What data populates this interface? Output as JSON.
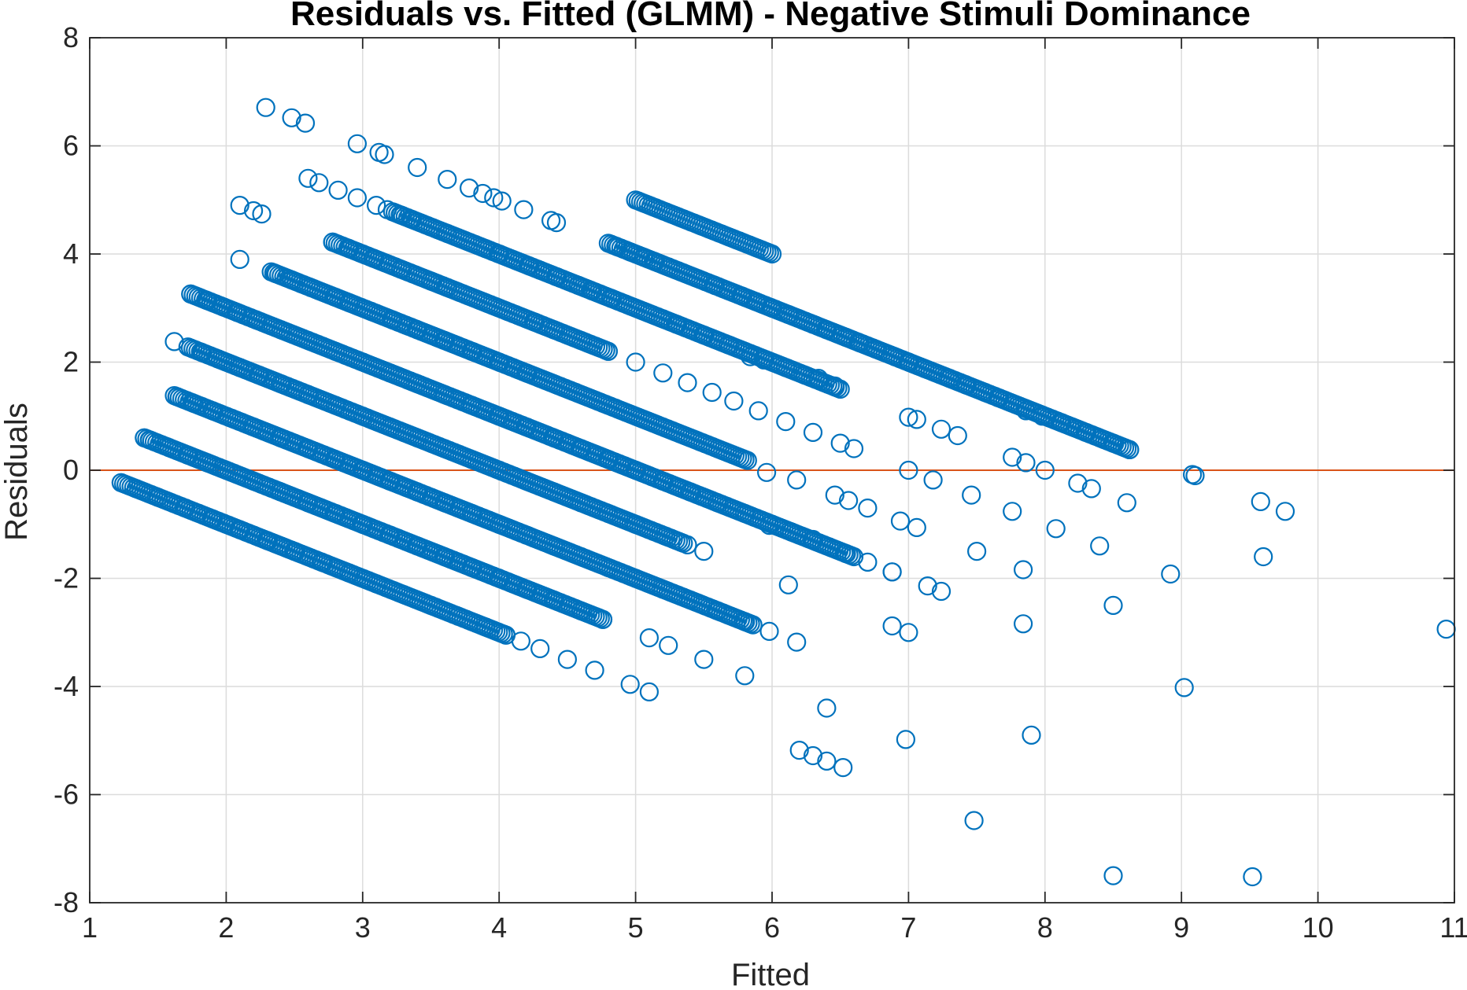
{
  "chart_data": {
    "type": "scatter",
    "title": "Residuals vs. Fitted (GLMM) - Negative Stimuli Dominance",
    "xlabel": "Fitted",
    "ylabel": "Residuals",
    "xlim": [
      1,
      11
    ],
    "ylim": [
      -8,
      8
    ],
    "xticks": [
      1,
      2,
      3,
      4,
      5,
      6,
      7,
      8,
      9,
      10,
      11
    ],
    "yticks": [
      -8,
      -6,
      -4,
      -2,
      0,
      2,
      4,
      6,
      8
    ],
    "grid": true,
    "reference_line": {
      "y": 0,
      "color": "#d95319"
    },
    "marker": "circle-open",
    "series_color": "#0072bd",
    "bands": [
      {
        "observed": 1,
        "fitted_range": [
          1.23,
          4.05
        ]
      },
      {
        "observed": 2,
        "fitted_range": [
          1.4,
          4.76
        ]
      },
      {
        "observed": 3,
        "fitted_range": [
          1.62,
          5.86
        ]
      },
      {
        "observed": 4,
        "fitted_range": [
          1.72,
          5.35
        ]
      },
      {
        "observed": 5,
        "fitted_range": [
          1.74,
          6.6
        ]
      },
      {
        "observed": 6,
        "fitted_range": [
          2.33,
          5.82
        ]
      },
      {
        "observed": 7,
        "fitted_range": [
          2.78,
          4.8
        ]
      },
      {
        "observed": 8,
        "fitted_range": [
          3.22,
          6.5
        ]
      },
      {
        "observed": 9,
        "fitted_range": [
          4.8,
          8.62
        ]
      },
      {
        "observed": 10,
        "fitted_range": [
          5.0,
          6.0
        ]
      }
    ],
    "points": [
      [
        2.29,
        6.71
      ],
      [
        2.48,
        6.52
      ],
      [
        2.58,
        6.42
      ],
      [
        2.96,
        6.04
      ],
      [
        3.12,
        5.88
      ],
      [
        3.16,
        5.84
      ],
      [
        3.4,
        5.6
      ],
      [
        2.6,
        5.4
      ],
      [
        2.68,
        5.32
      ],
      [
        2.82,
        5.18
      ],
      [
        2.96,
        5.04
      ],
      [
        3.1,
        4.9
      ],
      [
        3.18,
        4.82
      ],
      [
        3.28,
        4.72
      ],
      [
        3.36,
        4.64
      ],
      [
        3.62,
        5.38
      ],
      [
        3.78,
        5.22
      ],
      [
        3.88,
        5.12
      ],
      [
        3.96,
        5.04
      ],
      [
        4.02,
        4.98
      ],
      [
        4.18,
        4.82
      ],
      [
        4.38,
        4.62
      ],
      [
        4.42,
        4.58
      ],
      [
        2.1,
        4.9
      ],
      [
        2.2,
        4.8
      ],
      [
        2.26,
        4.74
      ],
      [
        2.1,
        3.9
      ],
      [
        3.62,
        4.38
      ],
      [
        2.78,
        4.22
      ],
      [
        2.9,
        4.1
      ],
      [
        3.0,
        4.0
      ],
      [
        3.08,
        3.92
      ],
      [
        3.28,
        3.72
      ],
      [
        3.5,
        3.5
      ],
      [
        3.62,
        3.38
      ],
      [
        3.9,
        4.1
      ],
      [
        4.0,
        4.0
      ],
      [
        4.22,
        3.78
      ],
      [
        4.3,
        3.7
      ],
      [
        4.42,
        3.58
      ],
      [
        4.58,
        3.42
      ],
      [
        4.68,
        3.32
      ],
      [
        4.82,
        3.18
      ],
      [
        4.86,
        4.14
      ],
      [
        4.96,
        4.04
      ],
      [
        5.06,
        3.94
      ],
      [
        5.14,
        3.86
      ],
      [
        5.24,
        3.76
      ],
      [
        5.58,
        3.42
      ],
      [
        2.36,
        3.64
      ],
      [
        2.48,
        3.52
      ],
      [
        2.62,
        3.38
      ],
      [
        2.8,
        3.2
      ],
      [
        2.9,
        3.1
      ],
      [
        3.06,
        2.94
      ],
      [
        3.22,
        2.78
      ],
      [
        3.4,
        2.6
      ],
      [
        3.6,
        2.4
      ],
      [
        3.8,
        2.2
      ],
      [
        4.0,
        2.0
      ],
      [
        4.2,
        1.8
      ],
      [
        4.26,
        2.74
      ],
      [
        4.4,
        2.6
      ],
      [
        4.6,
        2.4
      ],
      [
        4.8,
        2.2
      ],
      [
        5.0,
        2.0
      ],
      [
        5.2,
        1.8
      ],
      [
        5.38,
        1.62
      ],
      [
        5.56,
        1.44
      ],
      [
        5.72,
        1.28
      ],
      [
        5.9,
        1.1
      ],
      [
        6.1,
        0.9
      ],
      [
        6.3,
        0.7
      ],
      [
        6.5,
        0.5
      ],
      [
        6.6,
        0.4
      ],
      [
        5.2,
        2.8
      ],
      [
        5.3,
        2.7
      ],
      [
        5.5,
        2.5
      ],
      [
        5.68,
        2.32
      ],
      [
        5.78,
        3.22
      ],
      [
        5.88,
        3.12
      ],
      [
        6.0,
        3.0
      ],
      [
        6.12,
        2.88
      ],
      [
        6.3,
        2.7
      ],
      [
        6.4,
        2.6
      ],
      [
        6.54,
        2.46
      ],
      [
        6.64,
        2.36
      ],
      [
        6.76,
        2.24
      ],
      [
        6.9,
        2.1
      ],
      [
        7.0,
        2.0
      ],
      [
        7.12,
        1.88
      ],
      [
        7.3,
        1.7
      ],
      [
        7.42,
        1.58
      ],
      [
        7.56,
        1.44
      ],
      [
        7.66,
        1.34
      ],
      [
        5.84,
        2.1
      ],
      [
        5.94,
        2.04
      ],
      [
        6.1,
        1.9
      ],
      [
        6.24,
        1.76
      ],
      [
        6.34,
        1.7
      ],
      [
        6.46,
        1.56
      ],
      [
        7.86,
        1.1
      ],
      [
        7.98,
        1.0
      ],
      [
        8.12,
        0.88
      ],
      [
        8.2,
        0.8
      ],
      [
        8.3,
        0.7
      ],
      [
        8.5,
        0.5
      ],
      [
        8.62,
        0.38
      ],
      [
        7.0,
        0.98
      ],
      [
        7.06,
        0.94
      ],
      [
        7.24,
        0.76
      ],
      [
        7.36,
        0.64
      ],
      [
        1.74,
        3.26
      ],
      [
        1.86,
        3.14
      ],
      [
        1.98,
        3.02
      ],
      [
        2.08,
        2.92
      ],
      [
        2.22,
        2.78
      ],
      [
        2.4,
        2.6
      ],
      [
        2.6,
        2.4
      ],
      [
        2.8,
        2.2
      ],
      [
        3.0,
        2.0
      ],
      [
        3.2,
        1.8
      ],
      [
        3.4,
        1.6
      ],
      [
        3.6,
        1.4
      ],
      [
        3.8,
        1.2
      ],
      [
        4.0,
        1.0
      ],
      [
        4.2,
        0.8
      ],
      [
        4.4,
        0.6
      ],
      [
        4.6,
        0.4
      ],
      [
        4.8,
        0.2
      ],
      [
        5.0,
        0.0
      ],
      [
        5.2,
        -0.2
      ],
      [
        5.4,
        -0.4
      ],
      [
        5.6,
        -0.6
      ],
      [
        5.8,
        -0.8
      ],
      [
        1.62,
        2.38
      ],
      [
        1.82,
        2.18
      ],
      [
        1.94,
        2.06
      ],
      [
        2.1,
        1.9
      ],
      [
        2.24,
        1.76
      ],
      [
        2.4,
        1.6
      ],
      [
        2.6,
        1.4
      ],
      [
        2.8,
        1.2
      ],
      [
        3.0,
        1.0
      ],
      [
        3.2,
        0.8
      ],
      [
        3.4,
        0.6
      ],
      [
        3.6,
        0.4
      ],
      [
        3.8,
        0.2
      ],
      [
        4.0,
        0.0
      ],
      [
        4.2,
        -0.2
      ],
      [
        4.4,
        -0.4
      ],
      [
        4.6,
        -0.6
      ],
      [
        4.8,
        -0.8
      ],
      [
        5.0,
        -1.0
      ],
      [
        5.22,
        -1.22
      ],
      [
        5.38,
        -1.38
      ],
      [
        5.5,
        -1.5
      ],
      [
        5.96,
        -0.04
      ],
      [
        6.18,
        -0.18
      ],
      [
        6.46,
        -0.46
      ],
      [
        6.56,
        -0.56
      ],
      [
        6.7,
        -0.7
      ],
      [
        5.98,
        -1.02
      ],
      [
        6.14,
        -1.14
      ],
      [
        6.3,
        -1.28
      ],
      [
        6.54,
        -1.54
      ],
      [
        6.7,
        -1.7
      ],
      [
        6.88,
        -1.88
      ],
      [
        1.64,
        1.36
      ],
      [
        1.76,
        1.24
      ],
      [
        1.9,
        1.1
      ],
      [
        2.04,
        0.96
      ],
      [
        2.2,
        0.8
      ],
      [
        2.4,
        0.6
      ],
      [
        2.6,
        0.4
      ],
      [
        2.8,
        0.2
      ],
      [
        3.0,
        0.0
      ],
      [
        3.2,
        -0.2
      ],
      [
        3.4,
        -0.4
      ],
      [
        3.6,
        -0.6
      ],
      [
        3.8,
        -0.8
      ],
      [
        4.0,
        -1.0
      ],
      [
        4.2,
        -1.2
      ],
      [
        4.4,
        -1.4
      ],
      [
        4.6,
        -1.6
      ],
      [
        4.8,
        -1.8
      ],
      [
        5.0,
        -2.0
      ],
      [
        5.2,
        -2.2
      ],
      [
        5.4,
        -2.4
      ],
      [
        5.6,
        -2.6
      ],
      [
        5.8,
        -2.8
      ],
      [
        1.58,
        0.42
      ],
      [
        1.72,
        0.28
      ],
      [
        1.86,
        0.14
      ],
      [
        2.0,
        0.0
      ],
      [
        2.2,
        -0.2
      ],
      [
        2.4,
        -0.4
      ],
      [
        2.6,
        -0.6
      ],
      [
        2.8,
        -0.8
      ],
      [
        3.0,
        -1.0
      ],
      [
        3.2,
        -1.2
      ],
      [
        3.4,
        -1.4
      ],
      [
        3.6,
        -1.6
      ],
      [
        3.8,
        -1.8
      ],
      [
        4.0,
        -2.0
      ],
      [
        4.2,
        -2.2
      ],
      [
        4.4,
        -2.4
      ],
      [
        4.6,
        -2.6
      ],
      [
        4.76,
        -2.76
      ],
      [
        1.4,
        0.6
      ],
      [
        1.44,
        0.56
      ],
      [
        1.23,
        -0.23
      ],
      [
        1.34,
        -0.34
      ],
      [
        1.5,
        -0.5
      ],
      [
        1.7,
        -0.7
      ],
      [
        1.9,
        -0.9
      ],
      [
        2.1,
        -1.1
      ],
      [
        2.3,
        -1.3
      ],
      [
        2.5,
        -1.5
      ],
      [
        2.7,
        -1.7
      ],
      [
        2.9,
        -1.9
      ],
      [
        3.1,
        -2.1
      ],
      [
        3.3,
        -2.3
      ],
      [
        3.5,
        -2.5
      ],
      [
        3.7,
        -2.7
      ],
      [
        3.9,
        -2.9
      ],
      [
        4.05,
        -3.05
      ],
      [
        4.16,
        -3.16
      ],
      [
        4.3,
        -3.3
      ],
      [
        4.5,
        -3.5
      ],
      [
        4.7,
        -3.7
      ],
      [
        4.96,
        -3.96
      ],
      [
        5.1,
        -4.1
      ],
      [
        5.1,
        -3.1
      ],
      [
        5.24,
        -3.24
      ],
      [
        5.5,
        -3.5
      ],
      [
        5.8,
        -3.8
      ],
      [
        5.98,
        -2.98
      ],
      [
        6.18,
        -3.18
      ],
      [
        6.12,
        -2.12
      ],
      [
        6.2,
        -5.18
      ],
      [
        6.3,
        -5.28
      ],
      [
        6.4,
        -5.38
      ],
      [
        6.52,
        -5.5
      ],
      [
        6.4,
        -4.4
      ],
      [
        7.0,
        0.0
      ],
      [
        7.18,
        -0.18
      ],
      [
        7.46,
        -0.46
      ],
      [
        6.94,
        -0.94
      ],
      [
        7.06,
        -1.06
      ],
      [
        7.5,
        -1.5
      ],
      [
        7.76,
        -0.76
      ],
      [
        7.84,
        -1.84
      ],
      [
        6.88,
        -1.88
      ],
      [
        7.14,
        -2.14
      ],
      [
        7.24,
        -2.24
      ],
      [
        6.88,
        -2.88
      ],
      [
        7.0,
        -3.0
      ],
      [
        6.98,
        -4.98
      ],
      [
        7.48,
        -6.48
      ],
      [
        7.76,
        0.24
      ],
      [
        7.86,
        0.14
      ],
      [
        8.0,
        0.0
      ],
      [
        8.24,
        -0.24
      ],
      [
        8.34,
        -0.34
      ],
      [
        8.6,
        -0.6
      ],
      [
        8.08,
        -1.08
      ],
      [
        8.4,
        -1.4
      ],
      [
        7.84,
        -2.84
      ],
      [
        8.5,
        -2.5
      ],
      [
        7.9,
        -4.9
      ],
      [
        8.5,
        -7.5
      ],
      [
        9.08,
        -0.08
      ],
      [
        9.1,
        -0.1
      ],
      [
        8.92,
        -1.92
      ],
      [
        9.02,
        -4.02
      ],
      [
        9.58,
        -0.58
      ],
      [
        9.76,
        -0.76
      ],
      [
        9.6,
        -1.6
      ],
      [
        9.52,
        -7.52
      ],
      [
        10.94,
        -2.94
      ]
    ]
  }
}
